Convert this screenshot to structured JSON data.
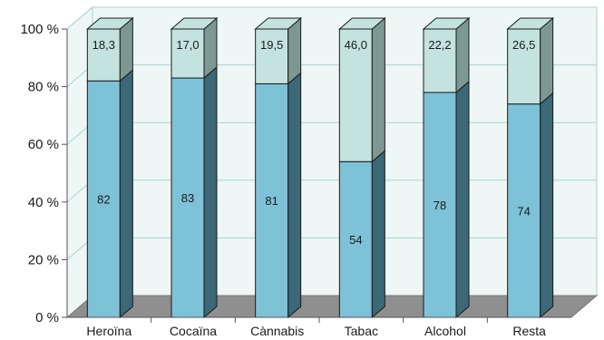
{
  "chart_data": {
    "type": "bar",
    "stacked": true,
    "three_d": true,
    "categories": [
      "Heroïna",
      "Cocaïna",
      "Cànnabis",
      "Tabac",
      "Alcohol",
      "Resta"
    ],
    "series": [
      {
        "values": [
          82,
          83,
          81,
          54,
          78,
          74
        ],
        "labels": [
          "82",
          "83",
          "81",
          "54",
          "78",
          "74"
        ]
      },
      {
        "values": [
          18.3,
          17.0,
          19.5,
          46.0,
          22.2,
          26.5
        ],
        "labels": [
          "18,3",
          "17,0",
          "19,5",
          "46,0",
          "22,2",
          "26,5"
        ]
      }
    ],
    "y_ticks": [
      "0 %",
      "20 %",
      "40 %",
      "60 %",
      "80 %",
      "100 %"
    ],
    "ylim": [
      0,
      100
    ],
    "grid": true,
    "colors": {
      "bottom_front": "#7ec2d8",
      "bottom_side": "#3c6878",
      "top_front": "#c4e3df",
      "top_side": "#7d9893",
      "top_cap": "#c4e3df",
      "wall": "#eef7f5",
      "floor": "#8f8f8f",
      "grid": "#a9d3cf"
    }
  }
}
